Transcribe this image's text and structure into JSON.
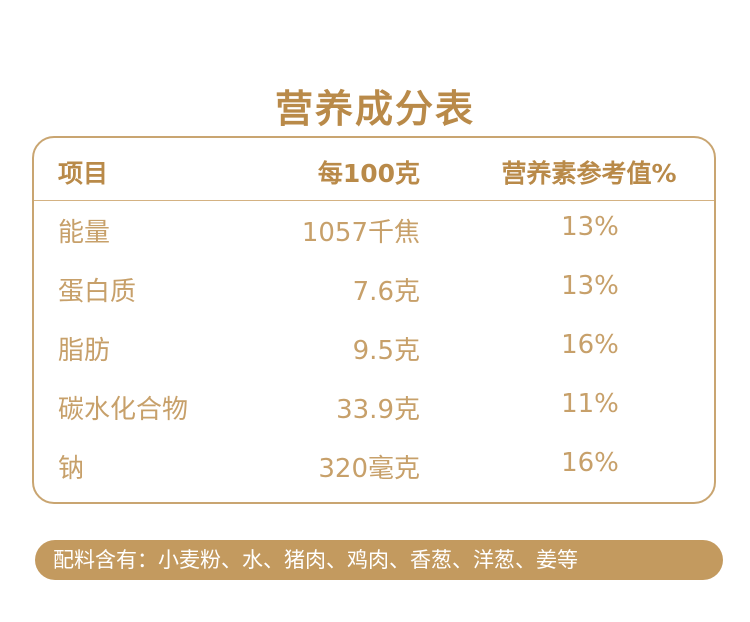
{
  "title": "营养成分表",
  "table": {
    "headers": {
      "item": "项目",
      "per100": "每100克",
      "nrv": "营养素参考值%"
    },
    "rows": [
      {
        "item": "能量",
        "per100": "1057千焦",
        "nrv": "13%"
      },
      {
        "item": "蛋白质",
        "per100": "7.6克",
        "nrv": "13%"
      },
      {
        "item": "脂肪",
        "per100": "9.5克",
        "nrv": "16%"
      },
      {
        "item": "碳水化合物",
        "per100": "33.9克",
        "nrv": "11%"
      },
      {
        "item": "钠",
        "per100": "320毫克",
        "nrv": "16%"
      }
    ]
  },
  "ingredients": "配料含有：小麦粉、水、猪肉、鸡肉、香葱、洋葱、姜等",
  "colors": {
    "accent": "#b98a49",
    "text": "#c7a06a",
    "border": "#c9a571",
    "banner": "#c39a5f"
  }
}
